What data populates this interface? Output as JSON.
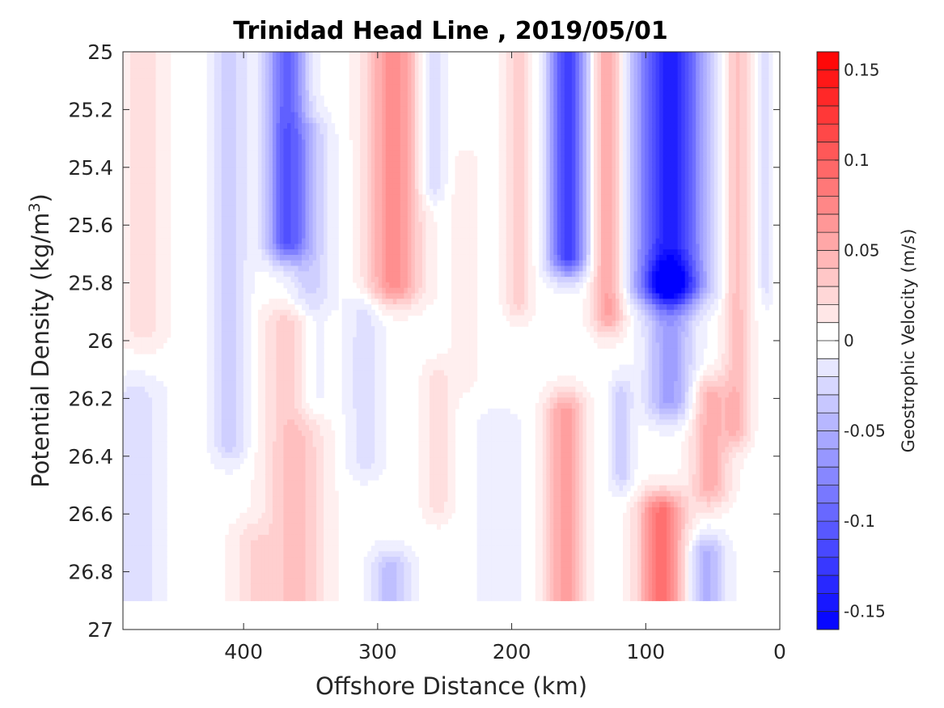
{
  "chart_data": {
    "type": "heatmap",
    "title": "Trinidad Head Line , 2019/05/01",
    "xlabel": "Offshore Distance (km)",
    "ylabel": {
      "main": "Potential Density (kg/m",
      "sup": "3",
      "tail": ")"
    },
    "xlim": [
      490,
      0
    ],
    "ylim": [
      25,
      27
    ],
    "x_ticks": [
      "400",
      "300",
      "200",
      "100",
      "0"
    ],
    "x_tick_values": [
      400,
      300,
      200,
      100,
      0
    ],
    "y_ticks": [
      "25",
      "25.2",
      "25.4",
      "25.6",
      "25.8",
      "26",
      "26.2",
      "26.4",
      "26.6",
      "26.8",
      "27"
    ],
    "y_tick_values": [
      25,
      25.2,
      25.4,
      25.6,
      25.8,
      26,
      26.2,
      26.4,
      26.6,
      26.8,
      27
    ],
    "data_sigma_max": 26.9,
    "colorbar": {
      "label": "Geostrophic Velocity (m/s)",
      "range": [
        -0.16,
        0.16
      ],
      "step": 0.01,
      "ticks": [
        "0.15",
        "0.1",
        "0.05",
        "0",
        "-0.05",
        "-0.1",
        "-0.15"
      ],
      "tick_values": [
        0.15,
        0.1,
        0.05,
        0,
        -0.05,
        -0.1,
        -0.15
      ]
    },
    "colors": {
      "positive": "#ff0000",
      "negative": "#0000ff",
      "zero": "#ffffff"
    },
    "features": [
      {
        "x": 475,
        "s0": 25.0,
        "s1": 25.95,
        "wx": 18,
        "v": 0.02
      },
      {
        "x": 410,
        "s0": 25.0,
        "s1": 26.35,
        "wx": 13,
        "v": -0.03
      },
      {
        "x": 368,
        "s0": 25.0,
        "s1": 25.65,
        "wx": 15,
        "v": -0.1
      },
      {
        "x": 350,
        "s0": 25.3,
        "s1": 26.2,
        "wx": 15,
        "v": -0.03
      },
      {
        "x": 288,
        "s0": 25.0,
        "s1": 25.8,
        "wx": 20,
        "v": 0.07
      },
      {
        "x": 260,
        "s0": 25.0,
        "s1": 25.45,
        "wx": 10,
        "v": -0.03
      },
      {
        "x": 235,
        "s0": 25.4,
        "s1": 26.1,
        "wx": 12,
        "v": 0.01
      },
      {
        "x": 195,
        "s0": 25.0,
        "s1": 25.85,
        "wx": 10,
        "v": 0.03
      },
      {
        "x": 158,
        "s0": 25.0,
        "s1": 25.7,
        "wx": 14,
        "v": -0.12
      },
      {
        "x": 128,
        "s0": 25.0,
        "s1": 25.9,
        "wx": 12,
        "v": 0.06
      },
      {
        "x": 82,
        "s0": 25.0,
        "s1": 25.8,
        "wx": 26,
        "v": -0.14
      },
      {
        "x": 82,
        "s0": 25.8,
        "s1": 26.2,
        "wx": 17,
        "v": -0.06
      },
      {
        "x": 32,
        "s0": 25.0,
        "s1": 26.3,
        "wx": 10,
        "v": 0.04
      },
      {
        "x": 10,
        "s0": 25.0,
        "s1": 25.8,
        "wx": 5,
        "v": -0.02
      },
      {
        "x": 480,
        "s0": 26.2,
        "s1": 26.9,
        "wx": 20,
        "v": -0.02
      },
      {
        "x": 362,
        "s0": 25.95,
        "s1": 26.9,
        "wx": 22,
        "v": 0.04
      },
      {
        "x": 395,
        "s0": 26.7,
        "s1": 26.9,
        "wx": 15,
        "v": 0.02
      },
      {
        "x": 290,
        "s0": 26.8,
        "s1": 26.9,
        "wx": 15,
        "v": -0.04
      },
      {
        "x": 255,
        "s0": 26.15,
        "s1": 26.55,
        "wx": 12,
        "v": 0.02
      },
      {
        "x": 210,
        "s0": 26.3,
        "s1": 26.9,
        "wx": 20,
        "v": -0.01
      },
      {
        "x": 160,
        "s0": 26.25,
        "s1": 26.9,
        "wx": 14,
        "v": 0.06
      },
      {
        "x": 118,
        "s0": 26.2,
        "s1": 26.45,
        "wx": 8,
        "v": -0.03
      },
      {
        "x": 88,
        "s0": 26.6,
        "s1": 26.9,
        "wx": 17,
        "v": 0.09
      },
      {
        "x": 52,
        "s0": 26.2,
        "s1": 26.5,
        "wx": 14,
        "v": 0.05
      },
      {
        "x": 55,
        "s0": 26.75,
        "s1": 26.9,
        "wx": 14,
        "v": -0.05
      },
      {
        "x": 310,
        "s0": 25.9,
        "s1": 26.4,
        "wx": 14,
        "v": -0.02
      }
    ]
  }
}
